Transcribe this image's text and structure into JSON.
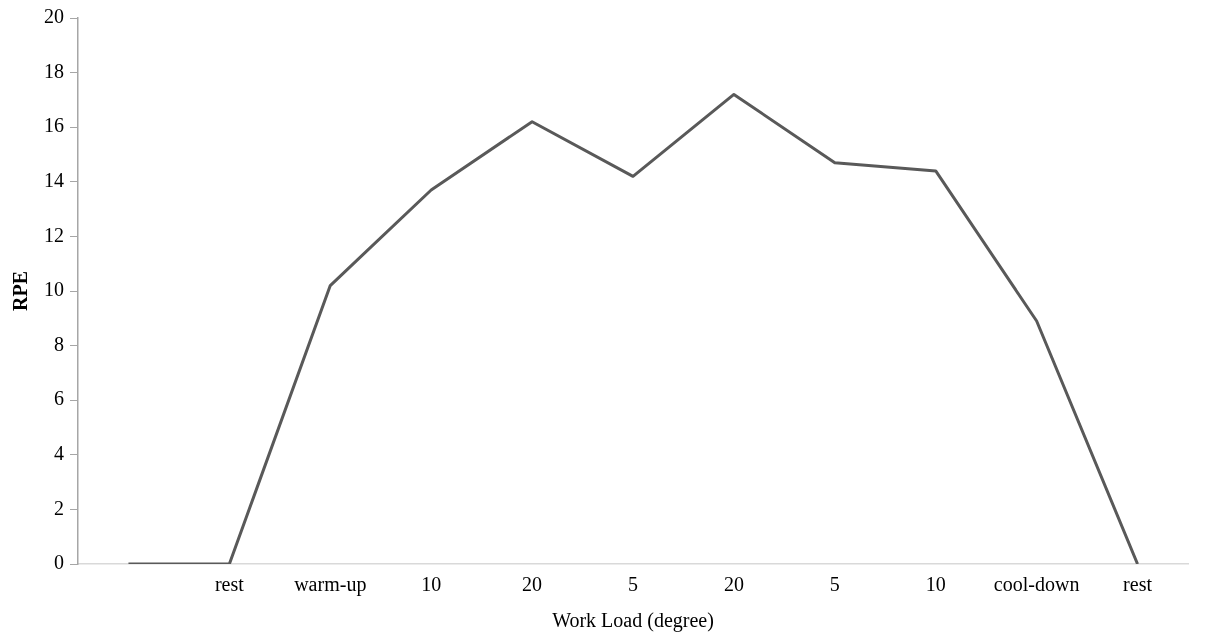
{
  "chart_data": {
    "type": "line",
    "xlabel": "Work Load (degree)",
    "ylabel": "RPE",
    "categories": [
      null,
      "rest",
      "warm-up",
      "10",
      "20",
      "5",
      "20",
      "5",
      "10",
      "cool-down",
      "rest"
    ],
    "series": [
      {
        "color": "#595959",
        "values": [
          0,
          0,
          10.2,
          13.7,
          16.2,
          14.2,
          17.2,
          14.7,
          14.4,
          8.9,
          0
        ]
      }
    ],
    "ylim": [
      0,
      20
    ],
    "yticks": [
      0,
      2,
      4,
      6,
      8,
      10,
      12,
      14,
      16,
      18,
      20
    ],
    "grid": false,
    "legend": false,
    "marker": "none",
    "line_style": "solid"
  }
}
